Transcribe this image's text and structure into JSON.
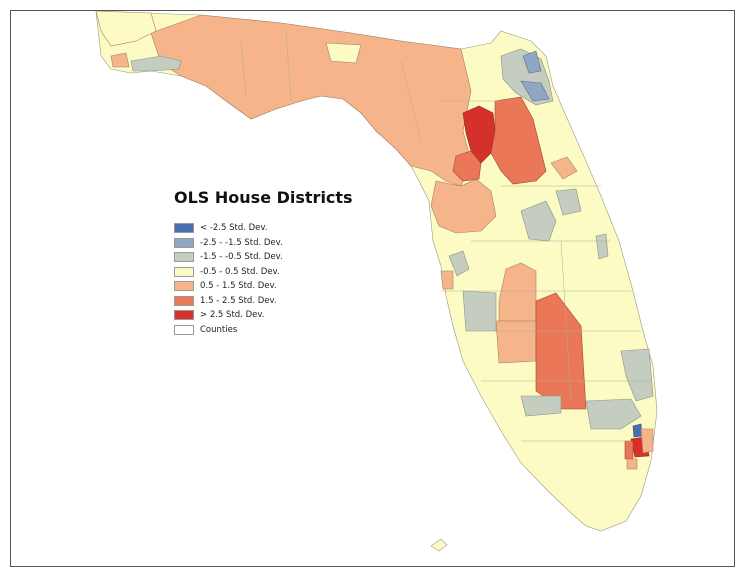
{
  "map": {
    "title": "OLS House Districts",
    "colors": {
      "lt_neg_2_5": "#4a6fae",
      "neg_2_5_to_neg_1_5": "#8fa6c4",
      "neg_1_5_to_neg_0_5": "#c4cdc0",
      "neg_0_5_to_0_5": "#fdfbc4",
      "pos_0_5_to_1_5": "#f5b48a",
      "pos_1_5_to_2_5": "#ea7757",
      "gt_2_5": "#d6302a",
      "counties": "#ffffff"
    }
  },
  "legend": {
    "items": [
      {
        "label": "< -2.5 Std. Dev.",
        "color": "#4a6fae"
      },
      {
        "label": "-2.5 - -1.5 Std. Dev.",
        "color": "#8fa6c4"
      },
      {
        "label": "-1.5 - -0.5 Std. Dev.",
        "color": "#c4cdc0"
      },
      {
        "label": "-0.5 - 0.5 Std. Dev.",
        "color": "#fdfbc4"
      },
      {
        "label": "0.5 - 1.5 Std. Dev.",
        "color": "#f5b48a"
      },
      {
        "label": "1.5 - 2.5 Std. Dev.",
        "color": "#ea7757"
      },
      {
        "label": "> 2.5 Std. Dev.",
        "color": "#d6302a"
      },
      {
        "label": "Counties",
        "color": "#ffffff"
      }
    ]
  }
}
